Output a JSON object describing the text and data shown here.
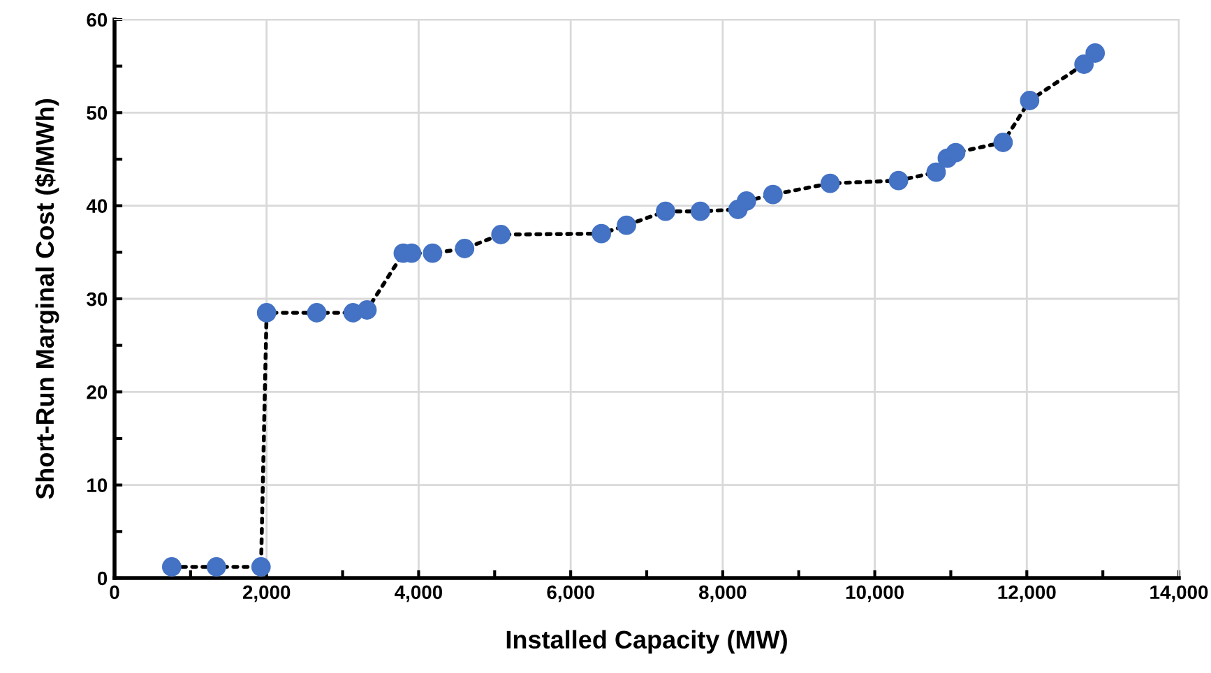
{
  "chart_data": {
    "type": "line",
    "xlabel": "Installed Capacity (MW)",
    "ylabel": "Short-Run Marginal Cost ($/MWh)",
    "xlim": [
      0,
      14000
    ],
    "xticks": [
      0,
      {
        "value": 2000,
        "label": "2,000"
      },
      {
        "value": 4000,
        "label": "4,000"
      },
      {
        "value": 6000,
        "label": "6,000"
      },
      {
        "value": 8000,
        "label": "8,000"
      },
      {
        "value": 10000,
        "label": "10,000"
      },
      {
        "value": 12000,
        "label": "12,000"
      },
      {
        "value": 14000,
        "label": "14,000"
      }
    ],
    "ylim": [
      0,
      60
    ],
    "yticks": [
      0,
      10,
      20,
      30,
      40,
      50,
      60
    ],
    "grid": true,
    "marker": "circle",
    "line_style": "dotted",
    "series": [
      {
        "color": "#4472c4",
        "x": [
          752,
          1340,
          1927,
          2000,
          2660,
          3138,
          3321,
          3798,
          3908,
          4183,
          4605,
          5082,
          6404,
          6734,
          7248,
          7706,
          8200,
          8312,
          8661,
          9413,
          10312,
          10807,
          10954,
          11064,
          11688,
          12037,
          12752,
          12899
        ],
        "values": [
          1.2,
          1.2,
          1.2,
          28.5,
          28.5,
          28.5,
          28.8,
          34.9,
          34.9,
          34.9,
          35.4,
          36.9,
          37.0,
          37.9,
          39.4,
          39.4,
          39.6,
          40.5,
          41.2,
          42.4,
          42.7,
          43.6,
          45.1,
          45.7,
          46.8,
          51.3,
          55.2,
          56.4
        ]
      }
    ]
  }
}
